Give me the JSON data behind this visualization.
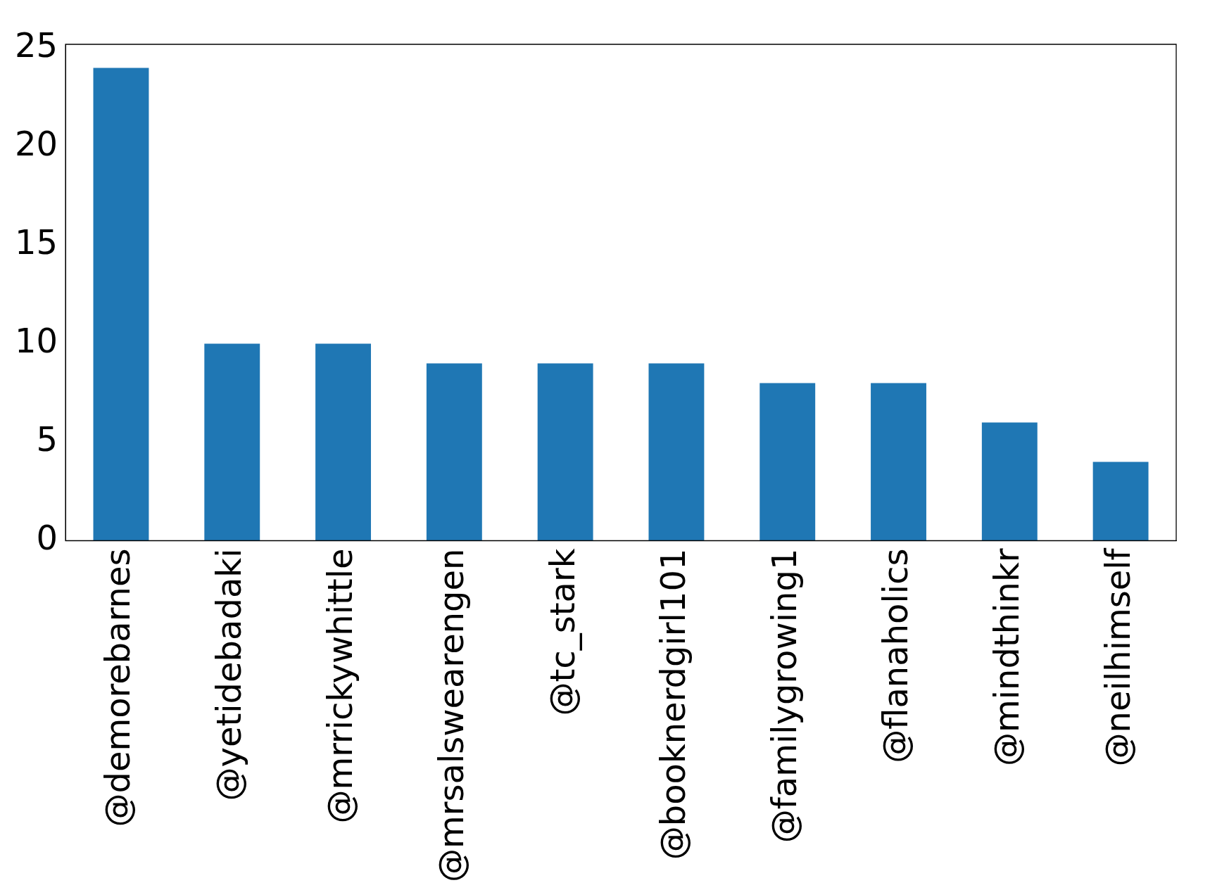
{
  "chart_data": {
    "type": "bar",
    "categories": [
      "@demorebarnes",
      "@yetidebadaki",
      "@mrrickywhittle",
      "@mrsalswearengen",
      "@tc_stark",
      "@booknerdgirl101",
      "@familygrowing1",
      "@flanaholics",
      "@mindthinkr",
      "@neilhimself"
    ],
    "values": [
      24,
      10,
      10,
      9,
      9,
      9,
      8,
      8,
      6,
      4
    ],
    "color": "#1f77b4",
    "ylim": [
      0,
      25.2
    ],
    "yticks": [
      0,
      5,
      10,
      15,
      20,
      25
    ],
    "grid": false,
    "legend": false
  }
}
